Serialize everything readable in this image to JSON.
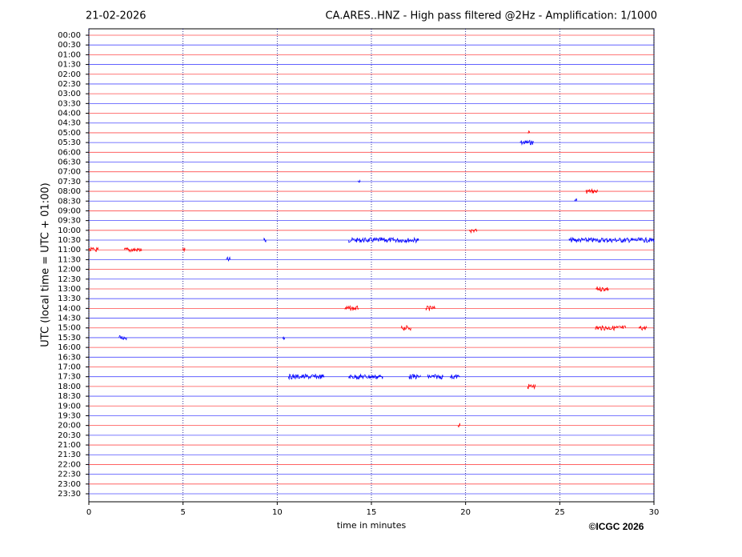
{
  "chart_data": {
    "type": "helicorder",
    "title": "21-02-2026",
    "subtitle": "CA.ARES..HNZ - High pass filtered @2Hz - Amplification: 1/1000",
    "x_label": "time in minutes",
    "y_label": "UTC (local time = UTC + 01:00)",
    "credit": "©ICGC 2026",
    "xlim": [
      0,
      30
    ],
    "xticks": [
      0,
      5,
      10,
      15,
      20,
      25,
      30
    ],
    "grid": true,
    "series": [
      {
        "name": "00:00",
        "color": "#ff0000",
        "bursts": []
      },
      {
        "name": "00:30",
        "color": "#0000ff",
        "bursts": []
      },
      {
        "name": "01:00",
        "color": "#ff0000",
        "bursts": []
      },
      {
        "name": "01:30",
        "color": "#0000ff",
        "bursts": []
      },
      {
        "name": "02:00",
        "color": "#ff0000",
        "bursts": []
      },
      {
        "name": "02:30",
        "color": "#0000ff",
        "bursts": []
      },
      {
        "name": "03:00",
        "color": "#ff0000",
        "bursts": []
      },
      {
        "name": "03:30",
        "color": "#0000ff",
        "bursts": []
      },
      {
        "name": "04:00",
        "color": "#ff0000",
        "bursts": []
      },
      {
        "name": "04:30",
        "color": "#0000ff",
        "bursts": []
      },
      {
        "name": "05:00",
        "color": "#ff0000",
        "bursts": [
          [
            23.3,
            23.4
          ]
        ]
      },
      {
        "name": "05:30",
        "color": "#0000ff",
        "bursts": [
          [
            22.9,
            23.6
          ]
        ]
      },
      {
        "name": "06:00",
        "color": "#ff0000",
        "bursts": []
      },
      {
        "name": "06:30",
        "color": "#0000ff",
        "bursts": []
      },
      {
        "name": "07:00",
        "color": "#ff0000",
        "bursts": []
      },
      {
        "name": "07:30",
        "color": "#0000ff",
        "bursts": [
          [
            14.3,
            14.4
          ]
        ]
      },
      {
        "name": "08:00",
        "color": "#ff0000",
        "bursts": [
          [
            26.4,
            27.0
          ]
        ]
      },
      {
        "name": "08:30",
        "color": "#0000ff",
        "bursts": [
          [
            25.8,
            25.9
          ]
        ]
      },
      {
        "name": "09:00",
        "color": "#ff0000",
        "bursts": []
      },
      {
        "name": "09:30",
        "color": "#0000ff",
        "bursts": []
      },
      {
        "name": "10:00",
        "color": "#ff0000",
        "bursts": [
          [
            20.2,
            20.6
          ]
        ]
      },
      {
        "name": "10:30",
        "color": "#0000ff",
        "bursts": [
          [
            9.3,
            9.4
          ],
          [
            13.8,
            17.5
          ],
          [
            25.5,
            30
          ]
        ]
      },
      {
        "name": "11:00",
        "color": "#ff0000",
        "bursts": [
          [
            0,
            0.5
          ],
          [
            1.9,
            2.8
          ],
          [
            5.0,
            5.1
          ]
        ]
      },
      {
        "name": "11:30",
        "color": "#0000ff",
        "bursts": [
          [
            7.3,
            7.5
          ]
        ]
      },
      {
        "name": "12:00",
        "color": "#ff0000",
        "bursts": []
      },
      {
        "name": "12:30",
        "color": "#0000ff",
        "bursts": []
      },
      {
        "name": "13:00",
        "color": "#ff0000",
        "bursts": [
          [
            26.9,
            27.6
          ]
        ]
      },
      {
        "name": "13:30",
        "color": "#0000ff",
        "bursts": []
      },
      {
        "name": "14:00",
        "color": "#ff0000",
        "bursts": [
          [
            13.6,
            14.3
          ],
          [
            17.9,
            18.4
          ]
        ]
      },
      {
        "name": "14:30",
        "color": "#0000ff",
        "bursts": []
      },
      {
        "name": "15:00",
        "color": "#ff0000",
        "bursts": [
          [
            16.6,
            17.1
          ],
          [
            26.9,
            28.5
          ],
          [
            29.2,
            29.6
          ]
        ]
      },
      {
        "name": "15:30",
        "color": "#0000ff",
        "bursts": [
          [
            1.6,
            2.0
          ],
          [
            10.3,
            10.4
          ]
        ]
      },
      {
        "name": "16:00",
        "color": "#ff0000",
        "bursts": []
      },
      {
        "name": "16:30",
        "color": "#0000ff",
        "bursts": []
      },
      {
        "name": "17:00",
        "color": "#ff0000",
        "bursts": []
      },
      {
        "name": "17:30",
        "color": "#0000ff",
        "bursts": [
          [
            10.6,
            12.5
          ],
          [
            13.8,
            15.6
          ],
          [
            17.0,
            17.6
          ],
          [
            18.0,
            18.8
          ],
          [
            19.2,
            19.7
          ]
        ]
      },
      {
        "name": "18:00",
        "color": "#ff0000",
        "bursts": [
          [
            23.3,
            23.7
          ]
        ]
      },
      {
        "name": "18:30",
        "color": "#0000ff",
        "bursts": []
      },
      {
        "name": "19:00",
        "color": "#ff0000",
        "bursts": []
      },
      {
        "name": "19:30",
        "color": "#0000ff",
        "bursts": []
      },
      {
        "name": "20:00",
        "color": "#ff0000",
        "bursts": [
          [
            19.6,
            19.7
          ]
        ]
      },
      {
        "name": "20:30",
        "color": "#0000ff",
        "bursts": []
      },
      {
        "name": "21:00",
        "color": "#ff0000",
        "bursts": []
      },
      {
        "name": "21:30",
        "color": "#0000ff",
        "bursts": []
      },
      {
        "name": "22:00",
        "color": "#ff0000",
        "bursts": []
      },
      {
        "name": "22:30",
        "color": "#0000ff",
        "bursts": []
      },
      {
        "name": "23:00",
        "color": "#ff0000",
        "bursts": []
      },
      {
        "name": "23:30",
        "color": "#0000ff",
        "bursts": []
      }
    ]
  }
}
